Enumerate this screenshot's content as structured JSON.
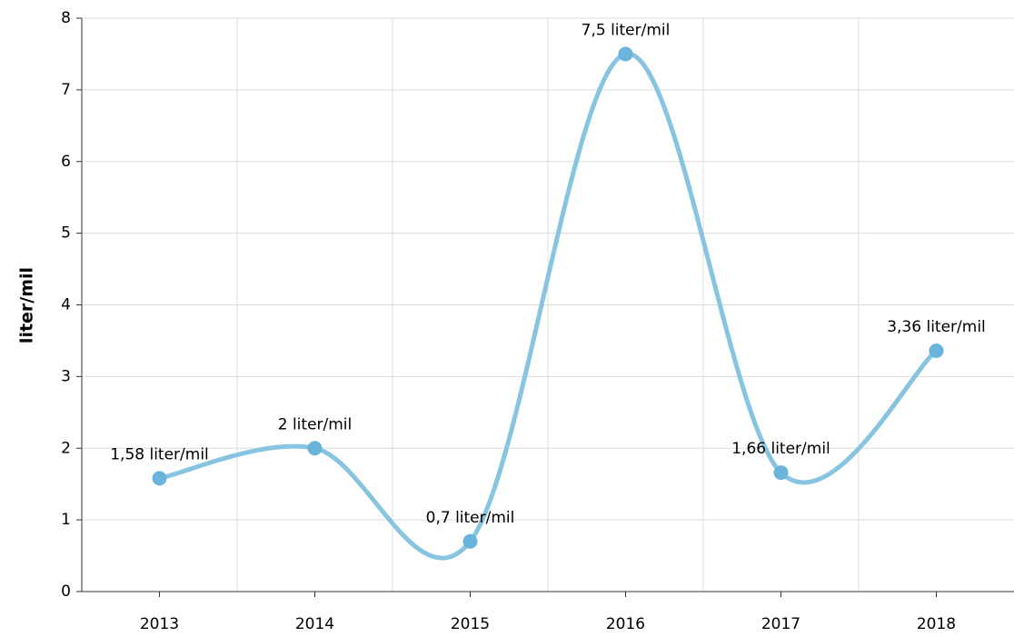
{
  "chart_data": {
    "type": "line",
    "y_label": "liter/mil",
    "categories": [
      "2013",
      "2014",
      "2015",
      "2016",
      "2017",
      "2018"
    ],
    "series": [
      {
        "name": "liter/mil",
        "color": "#86c4e2",
        "marker_color": "#6ab4dc",
        "values": [
          1.58,
          2,
          0.7,
          7.5,
          1.66,
          3.36
        ],
        "value_labels": [
          "1,58 liter/mil",
          "2 liter/mil",
          "0,7 liter/mil",
          "7,5 liter/mil",
          "1,66 liter/mil",
          "3,36 liter/mil"
        ]
      }
    ],
    "ylim": [
      0,
      8
    ],
    "yticks": [
      0,
      1,
      2,
      3,
      4,
      5,
      6,
      7,
      8
    ],
    "grid": true,
    "smooth": true
  }
}
